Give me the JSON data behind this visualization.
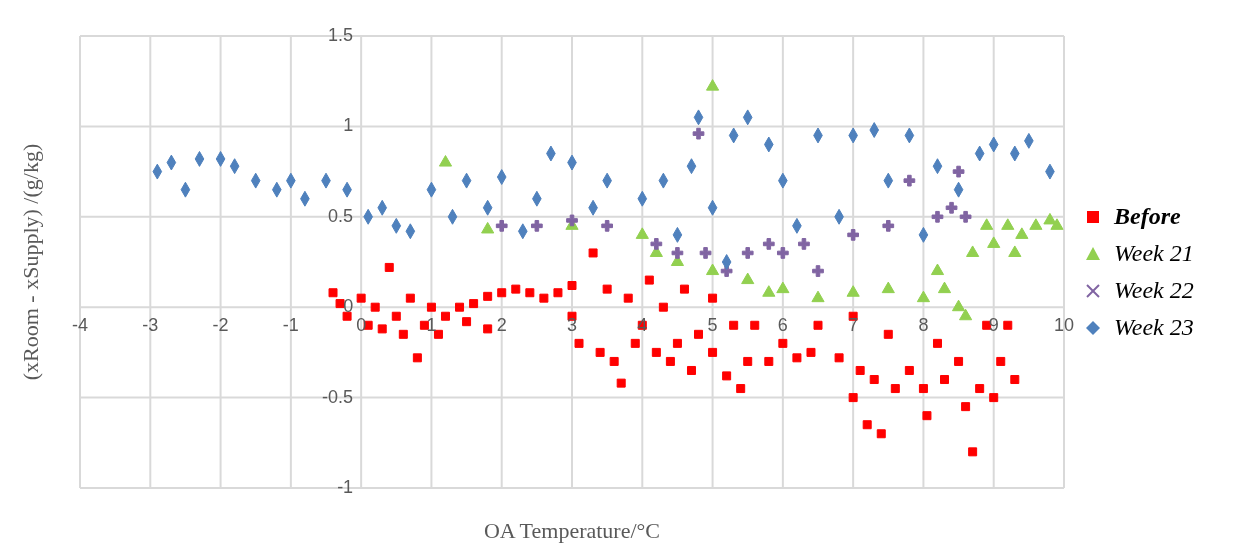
{
  "chart_data": {
    "type": "scatter",
    "xlabel": "OA Temperature/°C",
    "ylabel": "(xRoom - xSupply) /(g/kg)",
    "xlim": [
      -4,
      10
    ],
    "xticks": [
      -4,
      -3,
      -2,
      -1,
      0,
      1,
      2,
      3,
      4,
      5,
      6,
      7,
      8,
      9,
      10
    ],
    "ylim": [
      -1,
      1.5
    ],
    "yticks": [
      -1,
      -0.5,
      0,
      0.5,
      1,
      1.5
    ],
    "grid": true,
    "legend": "right",
    "series": [
      {
        "name": "Before",
        "color": "#ff0000",
        "marker": "square",
        "x": [
          -0.4,
          -0.3,
          -0.2,
          0,
          0.1,
          0.2,
          0.3,
          0.4,
          0.5,
          0.6,
          0.7,
          0.8,
          0.9,
          1.0,
          1.1,
          1.2,
          1.4,
          1.5,
          1.6,
          1.8,
          1.8,
          2.0,
          2.2,
          2.4,
          2.6,
          2.8,
          3.0,
          3.0,
          3.1,
          3.3,
          3.4,
          3.5,
          3.6,
          3.7,
          3.8,
          3.9,
          4.0,
          4.1,
          4.2,
          4.3,
          4.4,
          4.5,
          4.6,
          4.7,
          4.8,
          5.0,
          5.0,
          5.2,
          5.3,
          5.4,
          5.5,
          5.6,
          5.8,
          6.0,
          6.2,
          6.4,
          6.5,
          6.8,
          7.0,
          7.0,
          7.1,
          7.2,
          7.3,
          7.4,
          7.5,
          7.6,
          7.8,
          8.0,
          8.05,
          8.2,
          8.3,
          8.5,
          8.6,
          8.7,
          8.8,
          8.9,
          9.0,
          9.1,
          9.2,
          9.3
        ],
        "values": [
          0.08,
          0.02,
          -0.05,
          0.05,
          -0.1,
          0.0,
          -0.12,
          0.22,
          -0.05,
          -0.15,
          0.05,
          -0.28,
          -0.1,
          0.0,
          -0.15,
          -0.05,
          0.0,
          -0.08,
          0.02,
          -0.12,
          0.06,
          0.08,
          0.1,
          0.08,
          0.05,
          0.08,
          0.12,
          -0.05,
          -0.2,
          0.3,
          -0.25,
          0.1,
          -0.3,
          -0.42,
          0.05,
          -0.2,
          -0.1,
          0.15,
          -0.25,
          0.0,
          -0.3,
          -0.2,
          0.1,
          -0.35,
          -0.15,
          -0.25,
          0.05,
          -0.38,
          -0.1,
          -0.45,
          -0.3,
          -0.1,
          -0.3,
          -0.2,
          -0.28,
          -0.25,
          -0.1,
          -0.28,
          -0.05,
          -0.5,
          -0.35,
          -0.65,
          -0.4,
          -0.7,
          -0.15,
          -0.45,
          -0.35,
          -0.45,
          -0.6,
          -0.2,
          -0.4,
          -0.3,
          -0.55,
          -0.8,
          -0.45,
          -0.1,
          -0.5,
          -0.3,
          -0.1,
          -0.4
        ]
      },
      {
        "name": "Week 21",
        "color": "#92d050",
        "marker": "triangle",
        "x": [
          1.2,
          1.8,
          3,
          4,
          4.2,
          4.5,
          5.0,
          5.0,
          5.5,
          5.8,
          6.0,
          6.5,
          7.0,
          7.5,
          8.0,
          8.2,
          8.3,
          8.5,
          8.6,
          8.7,
          8.9,
          9.0,
          9.2,
          9.3,
          9.4,
          9.6,
          9.8,
          9.9
        ],
        "values": [
          0.8,
          0.43,
          0.45,
          0.4,
          0.3,
          0.25,
          1.22,
          0.2,
          0.15,
          0.08,
          0.1,
          0.05,
          0.08,
          0.1,
          0.05,
          0.2,
          0.1,
          0.0,
          -0.05,
          0.3,
          0.45,
          0.35,
          0.45,
          0.3,
          0.4,
          0.45,
          0.48,
          0.45
        ]
      },
      {
        "name": "Week 22",
        "color": "#8064a2",
        "marker": "cross",
        "x": [
          2.0,
          2.5,
          3.0,
          3.5,
          4.2,
          4.5,
          4.8,
          4.9,
          5.2,
          5.5,
          5.8,
          6.0,
          6.3,
          6.5,
          7.0,
          7.5,
          7.8,
          8.2,
          8.4,
          8.5,
          8.6
        ],
        "values": [
          0.45,
          0.45,
          0.48,
          0.45,
          0.35,
          0.3,
          0.96,
          0.3,
          0.2,
          0.3,
          0.35,
          0.3,
          0.35,
          0.2,
          0.4,
          0.45,
          0.7,
          0.5,
          0.55,
          0.75,
          0.5
        ]
      },
      {
        "name": "Week 23",
        "color": "#4f81bd",
        "marker": "diamond",
        "x": [
          -2.9,
          -2.7,
          -2.5,
          -2.3,
          -2.0,
          -1.8,
          -1.5,
          -1.2,
          -1.0,
          -0.8,
          -0.5,
          -0.2,
          0.1,
          0.3,
          0.5,
          0.7,
          1.0,
          1.3,
          1.5,
          1.8,
          2.0,
          2.3,
          2.5,
          2.7,
          3.0,
          3.3,
          3.5,
          4.0,
          4.3,
          4.5,
          4.7,
          4.8,
          5.0,
          5.2,
          5.3,
          5.5,
          5.8,
          6.0,
          6.2,
          6.5,
          6.8,
          7.0,
          7.3,
          7.5,
          7.8,
          8.0,
          8.2,
          8.5,
          8.8,
          9.0,
          9.3,
          9.5,
          9.8
        ],
        "values": [
          0.75,
          0.8,
          0.65,
          0.82,
          0.82,
          0.78,
          0.7,
          0.65,
          0.7,
          0.6,
          0.7,
          0.65,
          0.5,
          0.55,
          0.45,
          0.42,
          0.65,
          0.5,
          0.7,
          0.55,
          0.72,
          0.42,
          0.6,
          0.85,
          0.8,
          0.55,
          0.7,
          0.6,
          0.7,
          0.4,
          0.78,
          1.05,
          0.55,
          0.25,
          0.95,
          1.05,
          0.9,
          0.7,
          0.45,
          0.95,
          0.5,
          0.95,
          0.98,
          0.7,
          0.95,
          0.4,
          0.78,
          0.65,
          0.85,
          0.9,
          0.85,
          0.92,
          0.75
        ]
      }
    ]
  }
}
